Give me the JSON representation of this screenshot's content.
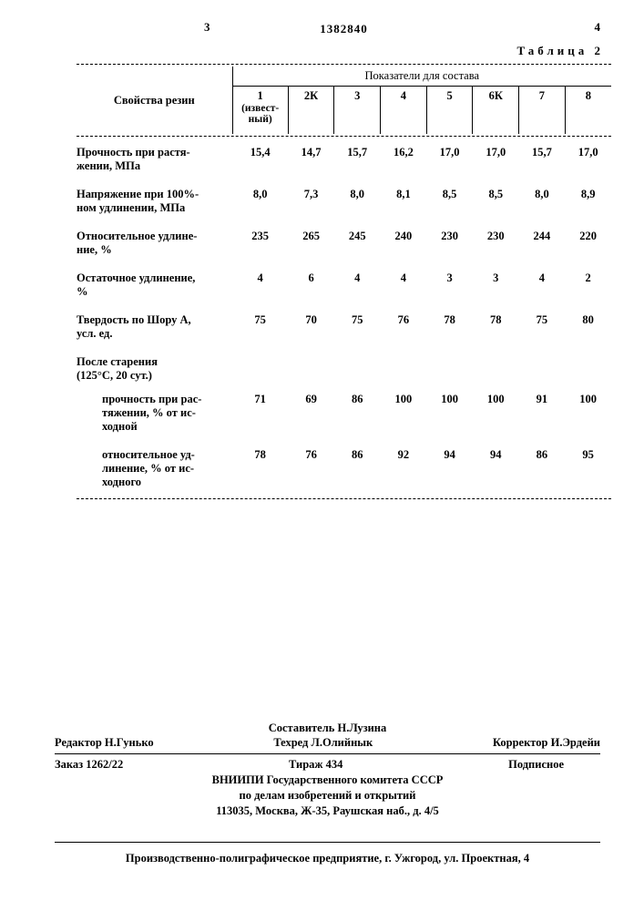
{
  "page_left_num": "3",
  "page_right_num": "4",
  "doc_number": "1382840",
  "table_caption": "Таблица 2",
  "table": {
    "row_header_title": "Свойства резин",
    "spanner": "Показатели для состава",
    "columns": [
      "1",
      "2К",
      "3",
      "4",
      "5",
      "6К",
      "7",
      "8"
    ],
    "col1_note": "(извест-\nный)",
    "rows": [
      {
        "label": "Прочность при растя-\nжении, МПа",
        "values": [
          "15,4",
          "14,7",
          "15,7",
          "16,2",
          "17,0",
          "17,0",
          "15,7",
          "17,0"
        ]
      },
      {
        "label": "Напряжение при 100%-\nном удлинении, МПа",
        "values": [
          "8,0",
          "7,3",
          "8,0",
          "8,1",
          "8,5",
          "8,5",
          "8,0",
          "8,9"
        ]
      },
      {
        "label": "Относительное удлине-\nние, %",
        "values": [
          "235",
          "265",
          "245",
          "240",
          "230",
          "230",
          "244",
          "220"
        ]
      },
      {
        "label": "Остаточное удлинение,\n%",
        "values": [
          "4",
          "6",
          "4",
          "4",
          "3",
          "3",
          "4",
          "2"
        ]
      },
      {
        "label": "Твердость по Шору А,\nусл. ед.",
        "values": [
          "75",
          "70",
          "75",
          "76",
          "78",
          "78",
          "75",
          "80"
        ]
      }
    ],
    "section_label": "После старения\n(125°С, 20 сут.)",
    "aged_rows": [
      {
        "label": "прочность при рас-\nтяжении, % от ис-\nходной",
        "values": [
          "71",
          "69",
          "86",
          "100",
          "100",
          "100",
          "91",
          "100"
        ]
      },
      {
        "label": "относительное уд-\nлинение, % от ис-\nходного",
        "values": [
          "78",
          "76",
          "86",
          "92",
          "94",
          "94",
          "86",
          "95"
        ]
      }
    ]
  },
  "credits": {
    "compiler": "Составитель Н.Лузина",
    "editor": "Редактор Н.Гунько",
    "tech": "Техред Л.Олийнык",
    "corrector": "Корректор И.Эрдейи",
    "order": "Заказ 1262/22",
    "tirazh": "Тираж 434",
    "podpisnoe": "Подписное",
    "vniipi1": "ВНИИПИ Государственного комитета СССР",
    "vniipi2": "по делам изобретений и открытий",
    "vniipi3": "113035, Москва, Ж-35, Раушская наб., д. 4/5",
    "printer": "Производственно-полиграфическое предприятие, г. Ужгород, ул. Проектная, 4"
  }
}
